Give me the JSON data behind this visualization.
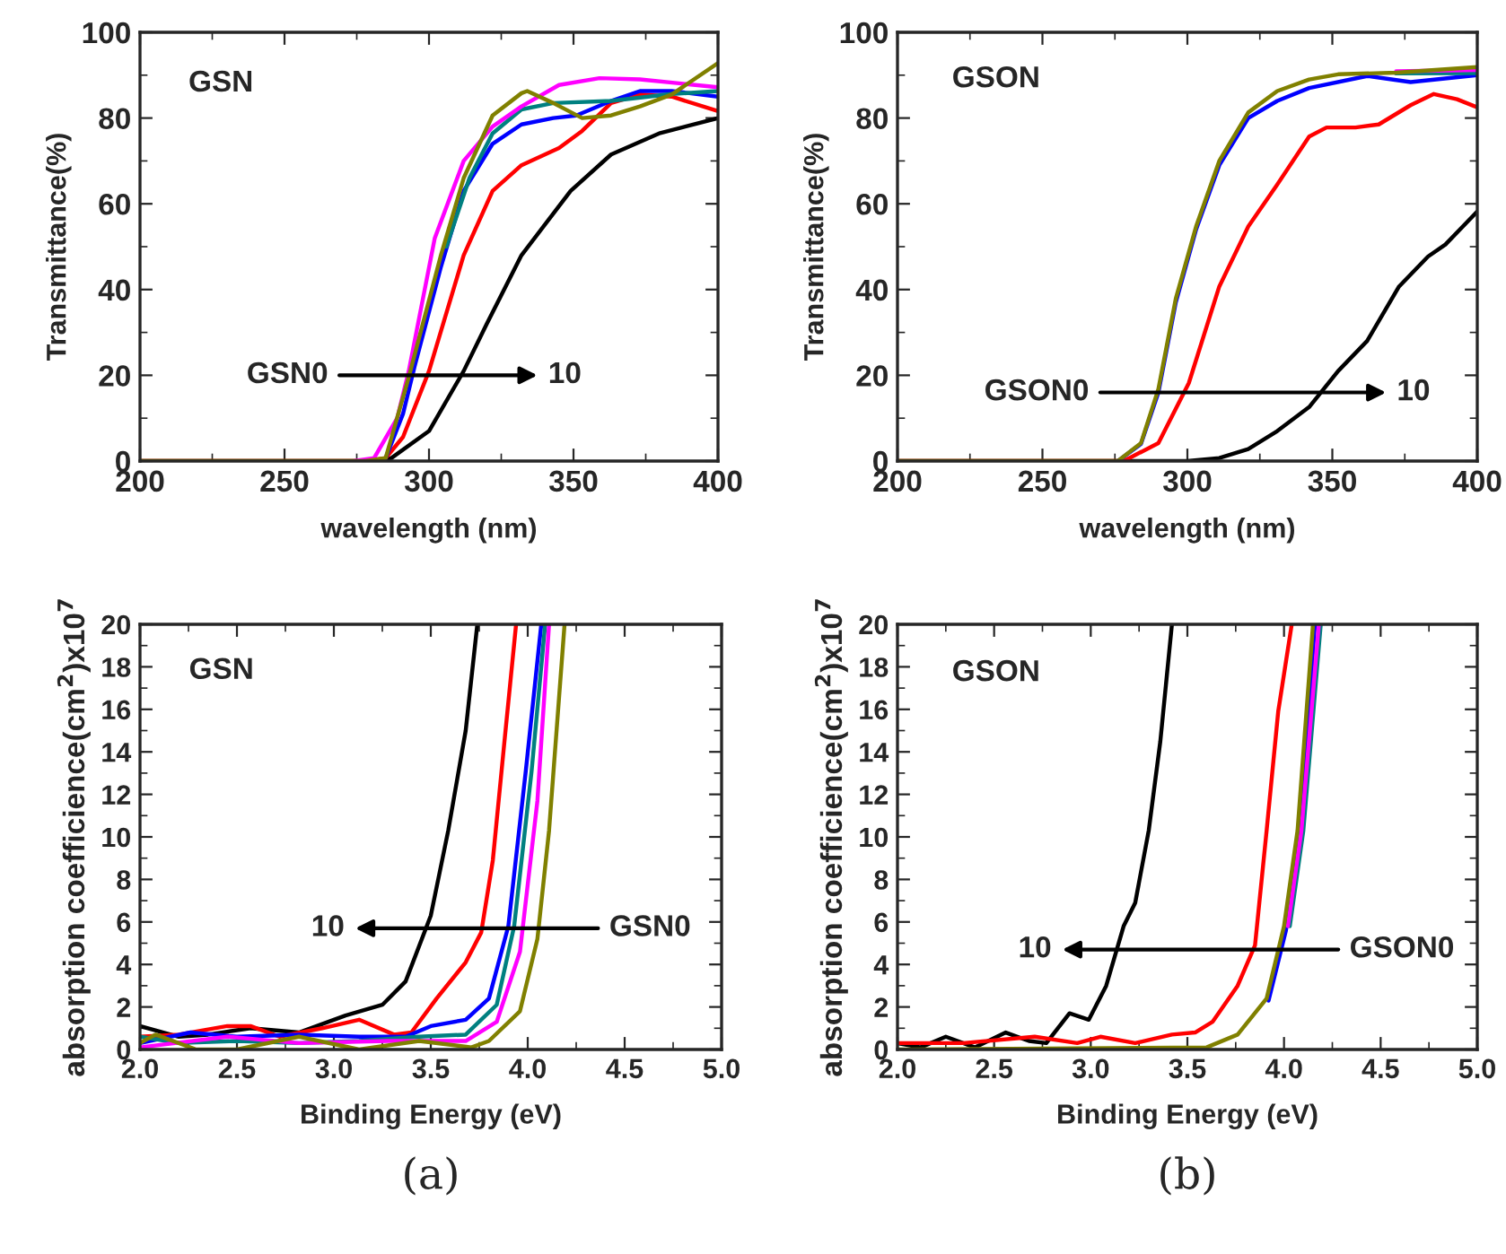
{
  "chart_data": [
    {
      "type": "line",
      "xlabel": "wavelength (nm)",
      "ylabel": "Transmittance(%)",
      "xlim": [
        200,
        400
      ],
      "ylim": [
        0,
        100
      ],
      "xticks": [
        200,
        250,
        300,
        350,
        400
      ],
      "yticks": [
        0,
        20,
        40,
        60,
        80,
        100
      ],
      "grid": false,
      "legend": false,
      "line_style": "solid",
      "marker": "none",
      "annotations": [
        "GSN",
        "GSN0",
        "10"
      ],
      "series": [
        {
          "color": "#000000",
          "x": [
            200,
            280,
            287,
            300,
            312,
            320,
            332,
            349,
            363,
            380,
            400
          ],
          "values": [
            0,
            0,
            0.7,
            7,
            21,
            32,
            48,
            63,
            71.5,
            76.5,
            80
          ]
        },
        {
          "color": "#ff0000",
          "x": [
            200,
            278,
            285,
            291,
            300,
            312,
            322,
            332,
            345,
            353,
            363,
            373,
            384,
            400
          ],
          "values": [
            0,
            0,
            0.7,
            5.6,
            21,
            48,
            63,
            69,
            73,
            77,
            83.5,
            85.5,
            85,
            81.6
          ]
        },
        {
          "color": "#0000ff",
          "x": [
            285,
            291,
            295,
            304,
            312,
            322,
            332,
            343,
            351,
            363,
            373,
            384,
            400
          ],
          "values": [
            0.7,
            11,
            22,
            45,
            63,
            74,
            78.5,
            80,
            80.6,
            84,
            86.3,
            86.3,
            85
          ]
        },
        {
          "color": "#008080",
          "x": [
            306,
            314,
            322,
            332,
            343,
            363,
            384,
            400
          ],
          "values": [
            50,
            66,
            76.4,
            82,
            83.5,
            84,
            85.6,
            86.3
          ]
        },
        {
          "color": "#ff00ff",
          "x": [
            274,
            281,
            289,
            293,
            302,
            312,
            322,
            332,
            345,
            359,
            373,
            400
          ],
          "values": [
            0,
            0.7,
            10,
            21,
            52,
            70,
            78,
            82.7,
            87.7,
            89.3,
            89,
            87.2
          ]
        },
        {
          "color": "#808000",
          "x": [
            200,
            278,
            285,
            293,
            304,
            312,
            322,
            332,
            334,
            343,
            353,
            363,
            373,
            384,
            400
          ],
          "values": [
            0,
            0,
            0.7,
            19.6,
            47.7,
            66,
            80.6,
            85.8,
            86.3,
            83.5,
            80,
            80.6,
            82.7,
            85.5,
            92.8
          ]
        }
      ]
    },
    {
      "type": "line",
      "xlabel": "wavelength (nm)",
      "ylabel": "Transmittance(%)",
      "xlim": [
        200,
        400
      ],
      "ylim": [
        0,
        100
      ],
      "xticks": [
        200,
        250,
        300,
        350,
        400
      ],
      "yticks": [
        0,
        20,
        40,
        60,
        80,
        100
      ],
      "grid": false,
      "legend": false,
      "line_style": "solid",
      "marker": "none",
      "annotations": [
        "GSON",
        "GSON0",
        "10"
      ],
      "series": [
        {
          "color": "#000000",
          "x": [
            200,
            300,
            311,
            321,
            331,
            342,
            352,
            362,
            373,
            383,
            389,
            400
          ],
          "values": [
            0,
            0,
            0.7,
            2.8,
            7,
            12.6,
            21,
            28,
            40.7,
            47.7,
            50.5,
            58.2
          ]
        },
        {
          "color": "#ff0000",
          "x": [
            200,
            278,
            290,
            300.5,
            311,
            321,
            331,
            342,
            348,
            358,
            366,
            377,
            385,
            393,
            400
          ],
          "values": [
            0,
            0,
            4.2,
            18.2,
            40.7,
            54.7,
            64.5,
            75.7,
            77.8,
            77.8,
            78.5,
            83,
            85.6,
            84.4,
            82.5
          ]
        },
        {
          "color": "#0000ff",
          "x": [
            276,
            284,
            290,
            296,
            303,
            311,
            321,
            331,
            342,
            362,
            377,
            400
          ],
          "values": [
            0,
            4,
            16,
            37,
            54,
            69,
            80,
            84,
            87,
            89.8,
            88.4,
            90
          ]
        },
        {
          "color": "#008080",
          "x": [
            372,
            400
          ],
          "values": [
            90.4,
            90.5
          ]
        },
        {
          "color": "#ff00ff",
          "x": [
            372,
            400
          ],
          "values": [
            90.9,
            91.2
          ]
        },
        {
          "color": "#808000",
          "x": [
            200,
            276,
            284,
            290,
            296,
            303,
            311,
            321,
            331,
            342,
            352,
            372,
            400
          ],
          "values": [
            0,
            0,
            4.2,
            16.8,
            37.9,
            54.7,
            70,
            81.3,
            86.3,
            89,
            90.2,
            90.6,
            91.9
          ]
        }
      ]
    },
    {
      "type": "line",
      "xlabel": "Binding Energy (eV)",
      "ylabel": "absorption coefficience(cm$^{2}$)x10$^{7}$",
      "xlim": [
        2.0,
        5.0
      ],
      "ylim": [
        0,
        20
      ],
      "xticks": [
        {
          "value": 2.0,
          "label": "2.0"
        },
        {
          "value": 2.5,
          "label": "2.5"
        },
        {
          "value": 3.0,
          "label": "3.0"
        },
        {
          "value": 3.5,
          "label": "3.5"
        },
        {
          "value": 4.0,
          "label": "4.0"
        },
        {
          "value": 4.5,
          "label": "4.5"
        },
        {
          "value": 5.0,
          "label": "5.0"
        }
      ],
      "yticks": [
        0,
        2,
        4,
        6,
        8,
        10,
        12,
        14,
        16,
        18,
        20
      ],
      "grid": false,
      "legend": false,
      "line_style": "solid",
      "marker": "none",
      "annotations": [
        "GSN",
        "GSN0",
        "10",
        "(a)"
      ],
      "series": [
        {
          "color": "#000000",
          "x": [
            2.0,
            2.2,
            2.35,
            2.57,
            2.82,
            3.06,
            3.25,
            3.37,
            3.5,
            3.59,
            3.68,
            3.74
          ],
          "values": [
            1.1,
            0.6,
            0.7,
            1.0,
            0.8,
            1.6,
            2.1,
            3.2,
            6.3,
            10.3,
            15,
            20
          ]
        },
        {
          "color": "#ff0000",
          "x": [
            2.0,
            2.2,
            2.45,
            2.57,
            2.72,
            2.94,
            3.13,
            3.31,
            3.4,
            3.53,
            3.68,
            3.76,
            3.82,
            3.88,
            3.94
          ],
          "values": [
            0.6,
            0.7,
            1.1,
            1.1,
            0.6,
            1.0,
            1.4,
            0.7,
            0.8,
            2.4,
            4.1,
            5.5,
            8.9,
            14.5,
            20
          ]
        },
        {
          "color": "#0000ff",
          "x": [
            2.0,
            2.26,
            2.5,
            2.82,
            3.13,
            3.37,
            3.5,
            3.68,
            3.8,
            3.9,
            3.99,
            4.07
          ],
          "values": [
            0.3,
            0.8,
            0.6,
            0.7,
            0.6,
            0.6,
            1.1,
            1.4,
            2.4,
            5.8,
            13.1,
            20
          ]
        },
        {
          "color": "#008080",
          "x": [
            2.0,
            2.2,
            2.5,
            2.82,
            3.13,
            3.44,
            3.68,
            3.84,
            3.93,
            4.02,
            4.09
          ],
          "values": [
            0.6,
            0.3,
            0.4,
            0.3,
            0.4,
            0.6,
            0.7,
            2.1,
            5.8,
            13.1,
            20
          ]
        },
        {
          "color": "#ff00ff",
          "x": [
            2.0,
            2.45,
            2.82,
            3.28,
            3.68,
            3.84,
            3.96,
            4.05,
            4.11
          ],
          "values": [
            0.1,
            0.6,
            0.3,
            0.4,
            0.4,
            1.3,
            4.6,
            11.7,
            20
          ]
        },
        {
          "color": "#808000",
          "x": [
            2.0,
            2.08,
            2.29,
            2.5,
            2.82,
            3.13,
            3.44,
            3.71,
            3.8,
            3.96,
            4.05,
            4.11,
            4.19
          ],
          "values": [
            0.3,
            0.7,
            0,
            0,
            0.6,
            0,
            0.4,
            0.1,
            0.4,
            1.8,
            5.2,
            10.3,
            20
          ]
        }
      ]
    },
    {
      "type": "line",
      "xlabel": "Binding Energy (eV)",
      "ylabel": "absorption coefficience(cm$^{2}$)x10$^{7}$",
      "xlim": [
        2.0,
        5.0
      ],
      "ylim": [
        0,
        20
      ],
      "xticks": [
        {
          "value": 2.0,
          "label": "2.0"
        },
        {
          "value": 2.5,
          "label": "2.5"
        },
        {
          "value": 3.0,
          "label": "3.0"
        },
        {
          "value": 3.5,
          "label": "3.5"
        },
        {
          "value": 4.0,
          "label": "4.0"
        },
        {
          "value": 4.5,
          "label": "4.5"
        },
        {
          "value": 5.0,
          "label": "5.0"
        }
      ],
      "yticks": [
        0,
        2,
        4,
        6,
        8,
        10,
        12,
        14,
        16,
        18,
        20
      ],
      "grid": false,
      "legend": false,
      "line_style": "solid",
      "marker": "none",
      "annotations": [
        "GSON",
        "GSON0",
        "10",
        "(b)"
      ],
      "series": [
        {
          "color": "#000000",
          "x": [
            2.0,
            2.12,
            2.25,
            2.4,
            2.56,
            2.68,
            2.77,
            2.89,
            2.99,
            3.08,
            3.17,
            3.23,
            3.3,
            3.36,
            3.42
          ],
          "values": [
            0.3,
            0.1,
            0.6,
            0.1,
            0.8,
            0.4,
            0.3,
            1.7,
            1.4,
            3.0,
            5.8,
            6.9,
            10.3,
            14.5,
            20
          ]
        },
        {
          "color": "#ff0000",
          "x": [
            2.0,
            2.34,
            2.71,
            2.93,
            3.05,
            3.23,
            3.42,
            3.54,
            3.63,
            3.76,
            3.85,
            3.91,
            3.97,
            4.04
          ],
          "values": [
            0.3,
            0.3,
            0.6,
            0.3,
            0.6,
            0.3,
            0.7,
            0.8,
            1.3,
            3.0,
            4.9,
            10.3,
            15.9,
            20
          ]
        },
        {
          "color": "#0000ff",
          "x": [
            3.92,
            4.01,
            4.08,
            4.16
          ],
          "values": [
            2.3,
            5.6,
            10.1,
            20
          ]
        },
        {
          "color": "#008080",
          "x": [
            4.03,
            4.1,
            4.19
          ],
          "values": [
            5.8,
            10.3,
            20
          ]
        },
        {
          "color": "#ff00ff",
          "x": [
            4.02,
            4.09,
            4.18
          ],
          "values": [
            5.8,
            10.3,
            20
          ]
        },
        {
          "color": "#808000",
          "x": [
            2.0,
            3.6,
            3.76,
            3.91,
            4.0,
            4.07,
            4.15
          ],
          "values": [
            0,
            0.1,
            0.7,
            2.4,
            5.8,
            10.3,
            20
          ]
        }
      ]
    }
  ]
}
